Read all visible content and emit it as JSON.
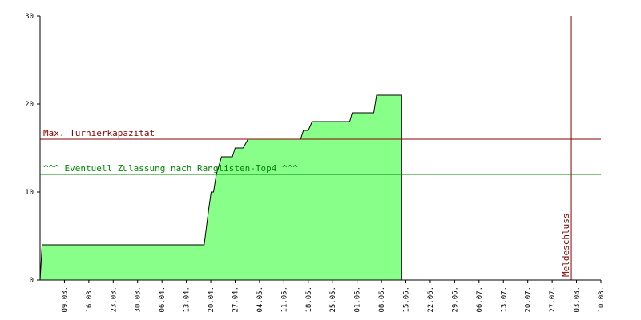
{
  "chart_data": {
    "type": "area",
    "title": "",
    "xlabel": "",
    "ylabel": "",
    "ylim": [
      0,
      30
    ],
    "yticks": [
      0,
      10,
      20,
      30
    ],
    "x_start": "2.03.",
    "x_end": "10.08.",
    "xticks": [
      {
        "label": "09.03.",
        "day": 7
      },
      {
        "label": "16.03.",
        "day": 14
      },
      {
        "label": "23.03.",
        "day": 21
      },
      {
        "label": "30.03.",
        "day": 28
      },
      {
        "label": "06.04.",
        "day": 35
      },
      {
        "label": "13.04.",
        "day": 42
      },
      {
        "label": "20.04.",
        "day": 49
      },
      {
        "label": "27.04.",
        "day": 56
      },
      {
        "label": "04.05.",
        "day": 63
      },
      {
        "label": "11.05.",
        "day": 70
      },
      {
        "label": "18.05.",
        "day": 77
      },
      {
        "label": "25.05.",
        "day": 84
      },
      {
        "label": "01.06.",
        "day": 91
      },
      {
        "label": "08.06.",
        "day": 98
      },
      {
        "label": "15.06.",
        "day": 105
      },
      {
        "label": "22.06.",
        "day": 112
      },
      {
        "label": "29.06.",
        "day": 119
      },
      {
        "label": "06.07.",
        "day": 126
      },
      {
        "label": "13.07.",
        "day": 133
      },
      {
        "label": "20.07.",
        "day": 140
      },
      {
        "label": "27.07.",
        "day": 147
      },
      {
        "label": "03.08.",
        "day": 154
      },
      {
        "label": "10.08.",
        "day": 161
      }
    ],
    "series": [
      {
        "fill_color": "#88ff88",
        "points": [
          {
            "day": 0.0,
            "value": 0
          },
          {
            "day": 0.6,
            "value": 4
          },
          {
            "day": 47.1,
            "value": 4
          },
          {
            "day": 48.4,
            "value": 8
          },
          {
            "day": 49.1,
            "value": 10
          },
          {
            "day": 49.8,
            "value": 10
          },
          {
            "day": 50.6,
            "value": 12
          },
          {
            "day": 52.1,
            "value": 14
          },
          {
            "day": 55.2,
            "value": 14
          },
          {
            "day": 56.0,
            "value": 15
          },
          {
            "day": 58.3,
            "value": 15
          },
          {
            "day": 59.7,
            "value": 16
          },
          {
            "day": 74.8,
            "value": 16
          },
          {
            "day": 75.6,
            "value": 17
          },
          {
            "day": 77.0,
            "value": 17
          },
          {
            "day": 78.1,
            "value": 18
          },
          {
            "day": 88.9,
            "value": 18
          },
          {
            "day": 89.6,
            "value": 19
          },
          {
            "day": 95.8,
            "value": 19
          },
          {
            "day": 96.6,
            "value": 21
          },
          {
            "day": 103.8,
            "value": 21
          },
          {
            "day": 103.8,
            "value": 0
          }
        ]
      }
    ],
    "reference_lines": [
      {
        "orientation": "horizontal",
        "value": 16,
        "label": "Max. Turnierkapazität",
        "color": "#880000"
      },
      {
        "orientation": "horizontal",
        "value": 12,
        "label": "^^^ Eventuell Zulassung nach Ranglisten-Top4 ^^^",
        "color": "#008800"
      },
      {
        "orientation": "vertical",
        "day": 152.5,
        "label": "Meldeschluss",
        "color": "#880000"
      }
    ],
    "grid": false,
    "legend": "none"
  }
}
